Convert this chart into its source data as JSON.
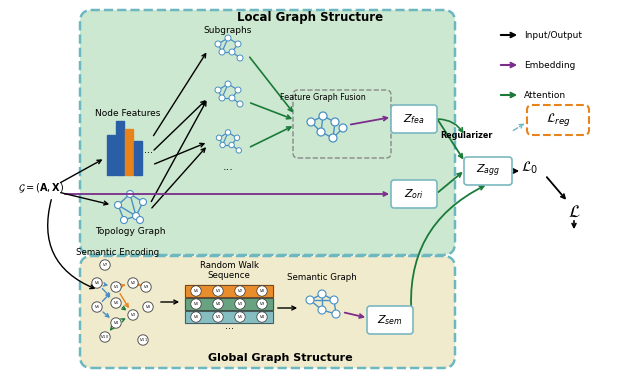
{
  "title": "",
  "bg_color": "#ffffff",
  "legend": {
    "items": [
      {
        "label": "Input/Output",
        "color": "#000000"
      },
      {
        "label": "Embedding",
        "color": "#7b2d8b"
      },
      {
        "label": "Attention",
        "color": "#1a7a3a"
      }
    ]
  },
  "colors": {
    "black": "#000000",
    "purple": "#7b2d8b",
    "green": "#1a7a3a",
    "blue_node": "#4a90c4",
    "orange_bar": "#e8821a",
    "blue_bar": "#2a5fa8",
    "teal_border": "#6db8c0",
    "local_bg": "#cde8d0",
    "global_bg": "#f0ebcc",
    "reg_border": "#e8821a"
  }
}
